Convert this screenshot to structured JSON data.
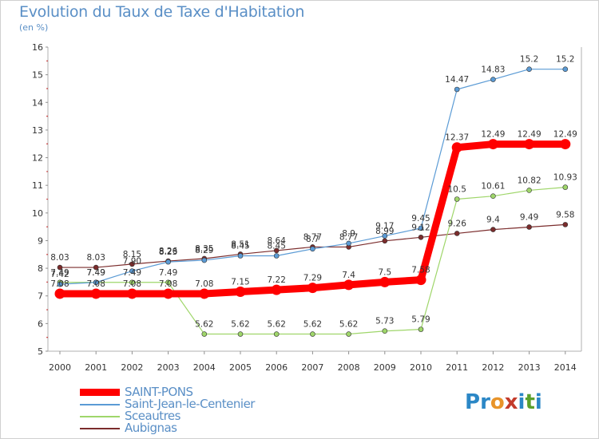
{
  "title": "Evolution du Taux de Taxe d'Habitation",
  "subtitle": "(en %)",
  "brand": {
    "letters": [
      "P",
      "r",
      "o",
      "x",
      "i",
      "t",
      "i"
    ],
    "colors": [
      "#2b87c6",
      "#2b87c6",
      "#e8942a",
      "#c33b2b",
      "#2b87c6",
      "#5aa02c",
      "#2b87c6"
    ]
  },
  "chart_data": {
    "type": "line",
    "title": "Evolution du Taux de Taxe d'Habitation",
    "ylabel": "(en %)",
    "xlabel": "",
    "x": [
      2000,
      2001,
      2002,
      2003,
      2004,
      2005,
      2006,
      2007,
      2008,
      2009,
      2010,
      2011,
      2012,
      2013,
      2014
    ],
    "ylim": [
      5,
      16
    ],
    "yticks": [
      5,
      6,
      7,
      8,
      9,
      10,
      11,
      12,
      13,
      14,
      15,
      16
    ],
    "grid": "none",
    "legend_position": "bottom-left",
    "series": [
      {
        "name": "SAINT-PONS",
        "color": "#ff0000",
        "emphasis": true,
        "values": [
          7.08,
          7.08,
          7.08,
          7.08,
          7.08,
          7.15,
          7.22,
          7.29,
          7.4,
          7.5,
          7.58,
          12.37,
          12.49,
          12.49,
          12.49
        ],
        "labels": [
          "7.08",
          "7.08",
          "7.08",
          "7.08",
          "7.08",
          "7.15",
          "7.22",
          "7.29",
          "7.4",
          "7.5",
          "7.58",
          "12.37",
          "12.49",
          "12.49",
          "12.49"
        ]
      },
      {
        "name": "Saint-Jean-le-Centenier",
        "color": "#5b9bd5",
        "values": [
          7.42,
          7.49,
          7.9,
          8.23,
          8.29,
          8.45,
          8.45,
          8.7,
          8.9,
          9.17,
          9.45,
          14.47,
          14.83,
          15.2,
          15.2
        ],
        "labels": [
          "7.42",
          "7.49",
          "7.90",
          "8.23",
          "8.29",
          "8.45",
          "8.45",
          "8.7",
          "8.9",
          "9.17",
          "9.45",
          "14.47",
          "14.83",
          "15.2",
          "15.2"
        ]
      },
      {
        "name": "Sceautres",
        "color": "#9fd66a",
        "values": [
          7.49,
          7.49,
          7.49,
          7.49,
          5.62,
          5.62,
          5.62,
          5.62,
          5.62,
          5.73,
          5.79,
          10.5,
          10.61,
          10.82,
          10.93
        ],
        "labels": [
          "7.49",
          "7.49",
          "7.49",
          "7.49",
          "5.62",
          "5.62",
          "5.62",
          "5.62",
          "5.62",
          "5.73",
          "5.79",
          "10.5",
          "10.61",
          "10.82",
          "10.93"
        ]
      },
      {
        "name": "Aubignas",
        "color": "#7b2c2c",
        "values": [
          8.03,
          8.03,
          8.15,
          8.26,
          8.35,
          8.51,
          8.64,
          8.77,
          8.77,
          8.99,
          9.12,
          9.26,
          9.4,
          9.49,
          9.58
        ],
        "labels": [
          "8.03",
          "8.03",
          "8.15",
          "8.26",
          "8.35",
          "8.51",
          "8.64",
          "8.77",
          "8.77",
          "8.99",
          "9.12",
          "9.26",
          "9.4",
          "9.49",
          "9.58"
        ]
      }
    ]
  }
}
